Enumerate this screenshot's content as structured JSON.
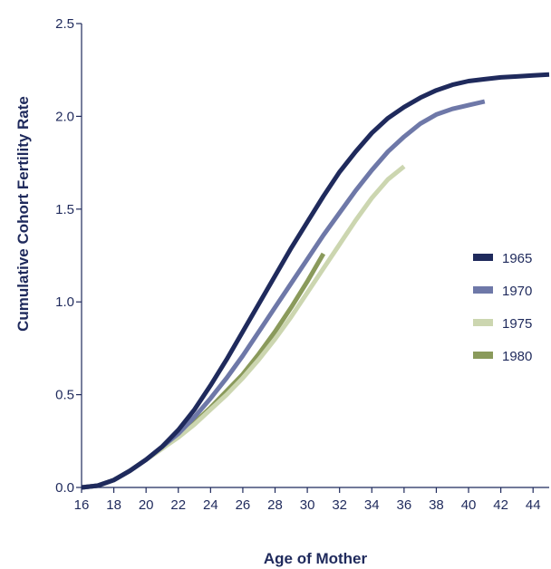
{
  "chart_data": {
    "type": "line",
    "title": "",
    "xlabel": "Age of Mother",
    "ylabel": "Cumulative Cohort Fertility Rate",
    "xlim": [
      16,
      45
    ],
    "ylim": [
      0,
      2.5
    ],
    "x_ticks": [
      16,
      18,
      20,
      22,
      24,
      26,
      28,
      30,
      32,
      34,
      36,
      38,
      40,
      42,
      44
    ],
    "y_ticks": [
      0.0,
      0.5,
      1.0,
      1.5,
      2.0,
      2.5
    ],
    "y_tick_labels": [
      "0.0",
      "0.5",
      "1.0",
      "1.5",
      "2.0",
      "2.5"
    ],
    "grid": false,
    "legend_position": "right",
    "series": [
      {
        "name": "1965",
        "color": "#1f2a5c",
        "x": [
          16,
          17,
          18,
          19,
          20,
          21,
          22,
          23,
          24,
          25,
          26,
          27,
          28,
          29,
          30,
          31,
          32,
          33,
          34,
          35,
          36,
          37,
          38,
          39,
          40,
          41,
          42,
          43,
          44,
          45
        ],
        "y": [
          0.0,
          0.01,
          0.04,
          0.09,
          0.15,
          0.22,
          0.31,
          0.42,
          0.55,
          0.69,
          0.84,
          0.99,
          1.14,
          1.29,
          1.43,
          1.57,
          1.7,
          1.81,
          1.91,
          1.99,
          2.05,
          2.1,
          2.14,
          2.17,
          2.19,
          2.2,
          2.21,
          2.215,
          2.22,
          2.225
        ]
      },
      {
        "name": "1970",
        "color": "#6e78a8",
        "x": [
          16,
          17,
          18,
          19,
          20,
          21,
          22,
          23,
          24,
          25,
          26,
          27,
          28,
          29,
          30,
          31,
          32,
          33,
          34,
          35,
          36,
          37,
          38,
          39,
          40,
          41
        ],
        "y": [
          0.0,
          0.01,
          0.04,
          0.09,
          0.15,
          0.22,
          0.29,
          0.38,
          0.48,
          0.59,
          0.71,
          0.84,
          0.97,
          1.1,
          1.23,
          1.36,
          1.48,
          1.6,
          1.71,
          1.81,
          1.89,
          1.96,
          2.01,
          2.04,
          2.06,
          2.08
        ]
      },
      {
        "name": "1975",
        "color": "#ccd6b0",
        "x": [
          16,
          17,
          18,
          19,
          20,
          21,
          22,
          23,
          24,
          25,
          26,
          27,
          28,
          29,
          30,
          31,
          32,
          33,
          34,
          35,
          36
        ],
        "y": [
          0.0,
          0.01,
          0.04,
          0.09,
          0.15,
          0.21,
          0.27,
          0.34,
          0.42,
          0.5,
          0.59,
          0.69,
          0.8,
          0.92,
          1.05,
          1.18,
          1.31,
          1.44,
          1.56,
          1.66,
          1.73
        ]
      },
      {
        "name": "1980",
        "color": "#8a9a5b",
        "x": [
          16,
          17,
          18,
          19,
          20,
          21,
          22,
          23,
          24,
          25,
          26,
          27,
          28,
          29,
          30,
          31
        ],
        "y": [
          0.0,
          0.01,
          0.04,
          0.09,
          0.15,
          0.21,
          0.28,
          0.35,
          0.43,
          0.52,
          0.61,
          0.72,
          0.84,
          0.97,
          1.11,
          1.26
        ]
      }
    ]
  }
}
